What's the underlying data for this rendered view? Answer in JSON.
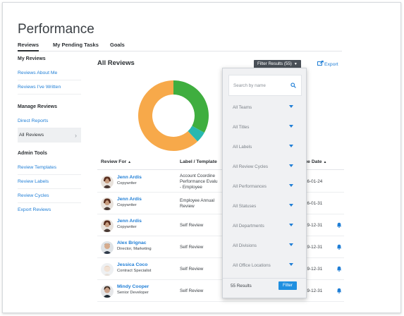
{
  "page": {
    "title": "Performance"
  },
  "tabs": [
    {
      "label": "Reviews",
      "active": true
    },
    {
      "label": "My Pending Tasks",
      "active": false
    },
    {
      "label": "Goals",
      "active": false
    }
  ],
  "sidebar": {
    "sections": [
      {
        "title": "My Reviews",
        "items": [
          {
            "label": "Reviews About Me"
          },
          {
            "label": "Reviews I've Written"
          }
        ]
      },
      {
        "title": "Manage Reviews",
        "items": [
          {
            "label": "Direct Reports"
          },
          {
            "label": "All Reviews",
            "active": true
          }
        ]
      },
      {
        "title": "Admin Tools",
        "items": [
          {
            "label": "Review Templates"
          },
          {
            "label": "Review Labels"
          },
          {
            "label": "Review Cycles"
          },
          {
            "label": "Export Reviews"
          }
        ]
      }
    ]
  },
  "main": {
    "title": "All Reviews",
    "filter_button": "Filter Results (55)",
    "export_label": "Export"
  },
  "chart_data": {
    "type": "pie",
    "title": "",
    "values": [
      62,
      33,
      5
    ],
    "colors": [
      "#f7a94a",
      "#3fae3f",
      "#28b8b0"
    ]
  },
  "table": {
    "headers": {
      "review_for": "Review For",
      "label": "Label / Template",
      "due": "ue Date"
    },
    "rows": [
      {
        "name": "Jenn Ardis",
        "role": "Copywriter",
        "label_lines": [
          "Account Coordine",
          "Performance Evalu",
          "- Employee"
        ],
        "due": "16-01-24",
        "bell": false
      },
      {
        "name": "Jenn Ardis",
        "role": "Copywriter",
        "label_lines": [
          "Employee Annual",
          "Review"
        ],
        "due": "16-01-31",
        "bell": false
      },
      {
        "name": "Jenn Ardis",
        "role": "Copywriter",
        "label_lines": [
          "Self Review"
        ],
        "due": "19-12-31",
        "bell": true
      },
      {
        "name": "Alex Brignac",
        "role": "Director, Marketing",
        "label_lines": [
          "Self Review"
        ],
        "due": "19-12-31",
        "bell": true
      },
      {
        "name": "Jessica Coco",
        "role": "Contract Specialist",
        "label_lines": [
          "Self Review"
        ],
        "due": "19-12-31",
        "bell": true
      },
      {
        "name": "Mindy Cooper",
        "role": "Senior Developer",
        "label_lines": [
          "Self Review"
        ],
        "due": "19-12-31",
        "bell": true
      }
    ]
  },
  "filter_panel": {
    "search_placeholder": "Search by name",
    "selects": [
      "All Teams",
      "All Titles",
      "All Labels",
      "All Review Cycles",
      "All Performances",
      "All Statuses",
      "All Departments",
      "All Divisions",
      "All Office Locations"
    ],
    "results_text": "55 Results",
    "apply_label": "Filter"
  },
  "colors": {
    "accent": "#1f7ed6",
    "filter_bg": "#4a5058",
    "apply": "#1f8fe0"
  }
}
